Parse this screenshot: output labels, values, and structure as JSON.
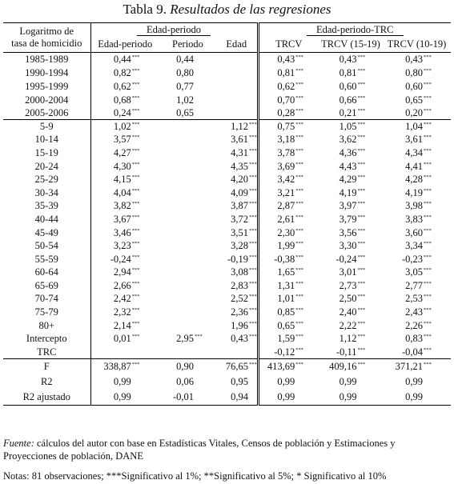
{
  "title": {
    "prefix": "Tabla 9.",
    "italic": "Resultados de las regresiones"
  },
  "header": {
    "stub_line1": "Logaritmo de",
    "stub_line2": "tasa de homicidio",
    "group1": "Edad-periodo",
    "group2": "Edad-periodo-TRC",
    "columns": [
      "Edad-periodo",
      "Periodo",
      "Edad",
      "TRCV",
      "TRCV (15-19)",
      "TRCV (10-19)"
    ]
  },
  "rows": [
    {
      "label": "1985-1989",
      "cells": [
        [
          "0,44",
          "***"
        ],
        [
          "0,44",
          ""
        ],
        [
          "",
          ""
        ],
        [
          "0,43",
          "***"
        ],
        [
          "0,43",
          "***"
        ],
        [
          "0,43",
          "***"
        ]
      ]
    },
    {
      "label": "1990-1994",
      "cells": [
        [
          "0,82",
          "***"
        ],
        [
          "0,80",
          ""
        ],
        [
          "",
          ""
        ],
        [
          "0,81",
          "***"
        ],
        [
          "0,81",
          "***"
        ],
        [
          "0,80",
          "***"
        ]
      ]
    },
    {
      "label": "1995-1999",
      "cells": [
        [
          "0,62",
          "***"
        ],
        [
          "0,77",
          ""
        ],
        [
          "",
          ""
        ],
        [
          "0,62",
          "***"
        ],
        [
          "0,60",
          "***"
        ],
        [
          "0,60",
          "***"
        ]
      ]
    },
    {
      "label": "2000-2004",
      "cells": [
        [
          "0,68",
          "***"
        ],
        [
          "1,02",
          ""
        ],
        [
          "",
          ""
        ],
        [
          "0,70",
          "***"
        ],
        [
          "0,66",
          "***"
        ],
        [
          "0,65",
          "***"
        ]
      ]
    },
    {
      "label": "2005-2006",
      "cells": [
        [
          "0,24",
          "***"
        ],
        [
          "0,65",
          ""
        ],
        [
          "",
          ""
        ],
        [
          "0,28",
          "***"
        ],
        [
          "0,21",
          "***"
        ],
        [
          "0,20",
          "***"
        ]
      ]
    },
    {
      "label": "5-9",
      "cells": [
        [
          "1,02",
          "***"
        ],
        [
          "",
          ""
        ],
        [
          "1,12",
          "***"
        ],
        [
          "0,75",
          "***"
        ],
        [
          "1,05",
          "***"
        ],
        [
          "1,04",
          "***"
        ]
      ]
    },
    {
      "label": "10-14",
      "cells": [
        [
          "3,57",
          "***"
        ],
        [
          "",
          ""
        ],
        [
          "3,61",
          "***"
        ],
        [
          "3,18",
          "***"
        ],
        [
          "3,62",
          "***"
        ],
        [
          "3,61",
          "***"
        ]
      ]
    },
    {
      "label": "15-19",
      "cells": [
        [
          "4,27",
          "***"
        ],
        [
          "",
          ""
        ],
        [
          "4,31",
          "***"
        ],
        [
          "3,78",
          "***"
        ],
        [
          "4,36",
          "***"
        ],
        [
          "4,34",
          "***"
        ]
      ]
    },
    {
      "label": "20-24",
      "cells": [
        [
          "4,30",
          "***"
        ],
        [
          "",
          ""
        ],
        [
          "4,35",
          "***"
        ],
        [
          "3,69",
          "***"
        ],
        [
          "4,43",
          "***"
        ],
        [
          "4,41",
          "***"
        ]
      ]
    },
    {
      "label": "25-29",
      "cells": [
        [
          "4,15",
          "***"
        ],
        [
          "",
          ""
        ],
        [
          "4,20",
          "***"
        ],
        [
          "3,42",
          "***"
        ],
        [
          "4,29",
          "***"
        ],
        [
          "4,28",
          "***"
        ]
      ]
    },
    {
      "label": "30-34",
      "cells": [
        [
          "4,04",
          "***"
        ],
        [
          "",
          ""
        ],
        [
          "4,09",
          "***"
        ],
        [
          "3,21",
          "***"
        ],
        [
          "4,19",
          "***"
        ],
        [
          "4,19",
          "***"
        ]
      ]
    },
    {
      "label": "35-39",
      "cells": [
        [
          "3,82",
          "***"
        ],
        [
          "",
          ""
        ],
        [
          "3,87",
          "***"
        ],
        [
          "2,87",
          "***"
        ],
        [
          "3,97",
          "***"
        ],
        [
          "3,98",
          "***"
        ]
      ]
    },
    {
      "label": "40-44",
      "cells": [
        [
          "3,67",
          "***"
        ],
        [
          "",
          ""
        ],
        [
          "3,72",
          "***"
        ],
        [
          "2,61",
          "***"
        ],
        [
          "3,79",
          "***"
        ],
        [
          "3,83",
          "***"
        ]
      ]
    },
    {
      "label": "45-49",
      "cells": [
        [
          "3,46",
          "***"
        ],
        [
          "",
          ""
        ],
        [
          "3,51",
          "***"
        ],
        [
          "2,30",
          "***"
        ],
        [
          "3,56",
          "***"
        ],
        [
          "3,60",
          "***"
        ]
      ]
    },
    {
      "label": "50-54",
      "cells": [
        [
          "3,23",
          "***"
        ],
        [
          "",
          ""
        ],
        [
          "3,28",
          "***"
        ],
        [
          "1,99",
          "***"
        ],
        [
          "3,30",
          "***"
        ],
        [
          "3,34",
          "***"
        ]
      ]
    },
    {
      "label": "55-59",
      "cells": [
        [
          "-0,24",
          "***"
        ],
        [
          "",
          ""
        ],
        [
          "-0,19",
          "***"
        ],
        [
          "-0,38",
          "***"
        ],
        [
          "-0,24",
          "***"
        ],
        [
          "-0,23",
          "***"
        ]
      ]
    },
    {
      "label": "60-64",
      "cells": [
        [
          "2,94",
          "***"
        ],
        [
          "",
          ""
        ],
        [
          "3,08",
          "***"
        ],
        [
          "1,65",
          "***"
        ],
        [
          "3,01",
          "***"
        ],
        [
          "3,05",
          "***"
        ]
      ]
    },
    {
      "label": "65-69",
      "cells": [
        [
          "2,66",
          "***"
        ],
        [
          "",
          ""
        ],
        [
          "2,83",
          "***"
        ],
        [
          "1,31",
          "***"
        ],
        [
          "2,73",
          "***"
        ],
        [
          "2,77",
          "***"
        ]
      ]
    },
    {
      "label": "70-74",
      "cells": [
        [
          "2,42",
          "***"
        ],
        [
          "",
          ""
        ],
        [
          "2,52",
          "***"
        ],
        [
          "1,01",
          "***"
        ],
        [
          "2,50",
          "***"
        ],
        [
          "2,53",
          "***"
        ]
      ]
    },
    {
      "label": "75-79",
      "cells": [
        [
          "2,32",
          "***"
        ],
        [
          "",
          ""
        ],
        [
          "2,36",
          "***"
        ],
        [
          "0,85",
          "***"
        ],
        [
          "2,40",
          "***"
        ],
        [
          "2,43",
          "***"
        ]
      ]
    },
    {
      "label": "80+",
      "cells": [
        [
          "2,14",
          "***"
        ],
        [
          "",
          ""
        ],
        [
          "1,96",
          "***"
        ],
        [
          "0,65",
          "***"
        ],
        [
          "2,22",
          "***"
        ],
        [
          "2,26",
          "***"
        ]
      ]
    },
    {
      "label": "Intercepto",
      "cells": [
        [
          "0,01",
          "***"
        ],
        [
          "2,95",
          "***"
        ],
        [
          "0,43",
          "***"
        ],
        [
          "1,59",
          "***"
        ],
        [
          "1,12",
          "***"
        ],
        [
          "0,83",
          "***"
        ]
      ]
    },
    {
      "label": "TRC",
      "cells": [
        [
          "",
          ""
        ],
        [
          "",
          ""
        ],
        [
          "",
          ""
        ],
        [
          "-0,12",
          "***"
        ],
        [
          "-0,11",
          "***"
        ],
        [
          "-0,04",
          "***"
        ]
      ]
    },
    {
      "label": "F",
      "cells": [
        [
          "338,87",
          "***"
        ],
        [
          "0,90",
          ""
        ],
        [
          "76,65",
          "***"
        ],
        [
          "413,69",
          "***"
        ],
        [
          "409,16",
          "***"
        ],
        [
          "371,21",
          "***"
        ]
      ]
    },
    {
      "label": "R2",
      "cells": [
        [
          "0,99",
          ""
        ],
        [
          "0,06",
          ""
        ],
        [
          "0,95",
          ""
        ],
        [
          "0,99",
          ""
        ],
        [
          "0,99",
          ""
        ],
        [
          "0,99",
          ""
        ]
      ]
    },
    {
      "label": "R2 ajustado",
      "cells": [
        [
          "0,99",
          ""
        ],
        [
          "-0,01",
          ""
        ],
        [
          "0,94",
          ""
        ],
        [
          "0,99",
          ""
        ],
        [
          "0,99",
          ""
        ],
        [
          "0,99",
          ""
        ]
      ]
    }
  ],
  "source": {
    "label": "Fuente:",
    "line1": " cálculos del autor con base en Estadísticas Vitales, Censos de población y Estimaciones y",
    "line2": "Proyecciones de población, DANE"
  },
  "notes": "Notas: 81 observaciones; ***Significativo al 1%; **Significativo al 5%; * Significativo al 10%"
}
